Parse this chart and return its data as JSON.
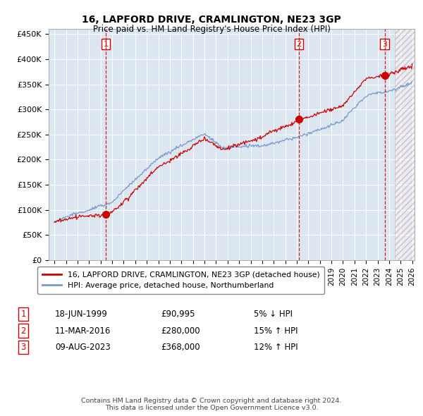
{
  "title": "16, LAPFORD DRIVE, CRAMLINGTON, NE23 3GP",
  "subtitle": "Price paid vs. HM Land Registry's House Price Index (HPI)",
  "ylim": [
    0,
    460000
  ],
  "yticks": [
    0,
    50000,
    100000,
    150000,
    200000,
    250000,
    300000,
    350000,
    400000,
    450000
  ],
  "ytick_labels": [
    "£0",
    "£50K",
    "£100K",
    "£150K",
    "£200K",
    "£250K",
    "£300K",
    "£350K",
    "£400K",
    "£450K"
  ],
  "bg_color": "#dce6f1",
  "grid_color": "white",
  "hpi_color": "#7799cc",
  "price_color": "#cc0000",
  "dashed_line_color": "#cc0000",
  "legend_entry1": "16, LAPFORD DRIVE, CRAMLINGTON, NE23 3GP (detached house)",
  "legend_entry2": "HPI: Average price, detached house, Northumberland",
  "sale1_date": "18-JUN-1999",
  "sale1_year": 1999.46,
  "sale1_price": 90995,
  "sale1_label": "1",
  "sale1_hpi_pct": "5% ↓ HPI",
  "sale2_date": "11-MAR-2016",
  "sale2_year": 2016.19,
  "sale2_price": 280000,
  "sale2_label": "2",
  "sale2_hpi_pct": "15% ↑ HPI",
  "sale3_date": "09-AUG-2023",
  "sale3_year": 2023.61,
  "sale3_price": 368000,
  "sale3_label": "3",
  "sale3_hpi_pct": "12% ↑ HPI",
  "footer": "Contains HM Land Registry data © Crown copyright and database right 2024.\nThis data is licensed under the Open Government Licence v3.0.",
  "xmin": 1994.5,
  "xmax": 2026.2,
  "hatch_start": 2024.5
}
